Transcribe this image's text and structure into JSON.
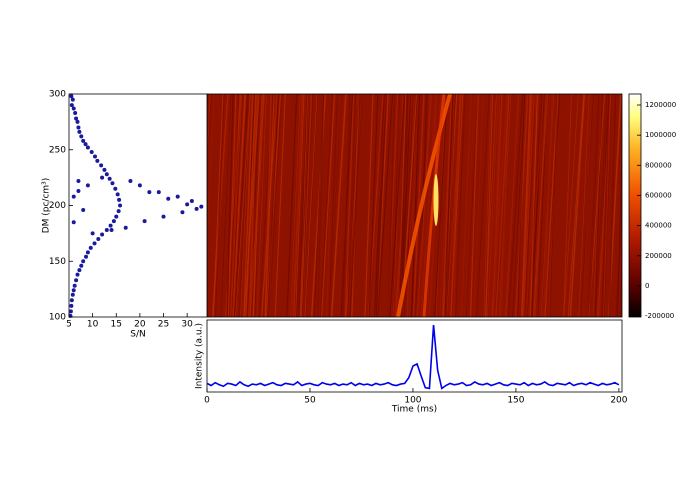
{
  "chart_data": [
    {
      "type": "scatter",
      "xlabel": "S/N",
      "ylabel": "DM (pc/cm³)",
      "color": "#1a1a9c",
      "xlim": [
        5,
        34.2
      ],
      "ylim": [
        100,
        300
      ],
      "xticks": [
        5,
        10,
        15,
        20,
        25,
        30
      ],
      "yticks": [
        100,
        150,
        200,
        250,
        300
      ],
      "x": [
        5.5,
        5.8,
        5.6,
        6,
        6.3,
        6.5,
        6.8,
        7,
        7.2,
        7.6,
        8,
        8.5,
        9,
        9.8,
        10.5,
        11,
        11.8,
        12.5,
        13,
        13.6,
        14.2,
        14.8,
        15.3,
        15.6,
        15.8,
        15.5,
        15,
        14.5,
        13.8,
        13,
        12,
        11.2,
        10.4,
        9.6,
        9,
        8.6,
        8,
        7.6,
        7.2,
        6.8,
        6.5,
        6.2,
        6,
        5.8,
        5.6,
        5.5,
        5.4,
        5.3,
        20,
        24,
        28,
        31,
        33,
        30,
        26,
        22,
        18,
        12,
        9,
        7,
        17,
        21,
        25,
        29,
        32,
        8,
        6,
        10,
        14,
        7,
        6
      ],
      "values": [
        298,
        295,
        290,
        287,
        283,
        278,
        275,
        270,
        266,
        262,
        258,
        255,
        252,
        248,
        244,
        240,
        236,
        232,
        228,
        224,
        220,
        215,
        210,
        205,
        200,
        195,
        190,
        186,
        182,
        178,
        174,
        170,
        166,
        162,
        158,
        154,
        150,
        146,
        142,
        138,
        133,
        128,
        124,
        120,
        115,
        110,
        105,
        101,
        218,
        212,
        208,
        204,
        199,
        201,
        206,
        212,
        222,
        225,
        218,
        213,
        180,
        186,
        190,
        194,
        197,
        196,
        185,
        175,
        178,
        222,
        208
      ]
    },
    {
      "type": "heatmap",
      "colorbar_lim": [
        -206000,
        1273000
      ],
      "colorbar_ticks": [
        -200000,
        0,
        200000,
        400000,
        600000,
        800000,
        1000000,
        1200000
      ]
    },
    {
      "type": "line",
      "xlabel": "Time (ms)",
      "ylabel": "Intensity (a.u.)",
      "color": "#0000ee",
      "xlim": [
        0,
        201.5
      ],
      "ylim": [
        0,
        1
      ],
      "xticks": [
        0,
        50,
        100,
        150,
        200
      ],
      "x": [
        0,
        2,
        4,
        6,
        8,
        10,
        12,
        14,
        16,
        18,
        20,
        22,
        24,
        26,
        28,
        30,
        32,
        34,
        36,
        38,
        40,
        42,
        44,
        46,
        48,
        50,
        52,
        54,
        56,
        58,
        60,
        62,
        64,
        66,
        68,
        70,
        72,
        74,
        76,
        78,
        80,
        82,
        84,
        86,
        88,
        90,
        92,
        94,
        96,
        98,
        100,
        102,
        104,
        106,
        108,
        110,
        112,
        114,
        116,
        118,
        120,
        122,
        124,
        126,
        128,
        130,
        132,
        134,
        136,
        138,
        140,
        142,
        144,
        146,
        148,
        150,
        152,
        154,
        156,
        158,
        160,
        162,
        164,
        166,
        168,
        170,
        172,
        174,
        176,
        178,
        180,
        182,
        184,
        186,
        188,
        190,
        192,
        194,
        196,
        198,
        200
      ],
      "values": [
        0.12,
        0.09,
        0.13,
        0.1,
        0.08,
        0.12,
        0.11,
        0.09,
        0.14,
        0.1,
        0.08,
        0.11,
        0.1,
        0.12,
        0.09,
        0.11,
        0.13,
        0.1,
        0.09,
        0.12,
        0.11,
        0.1,
        0.14,
        0.09,
        0.11,
        0.12,
        0.1,
        0.09,
        0.13,
        0.11,
        0.1,
        0.12,
        0.09,
        0.11,
        0.1,
        0.13,
        0.09,
        0.12,
        0.1,
        0.11,
        0.09,
        0.12,
        0.1,
        0.11,
        0.13,
        0.1,
        0.09,
        0.11,
        0.12,
        0.2,
        0.36,
        0.39,
        0.22,
        0.06,
        0.05,
        0.93,
        0.3,
        0.05,
        0.09,
        0.12,
        0.1,
        0.11,
        0.13,
        0.09,
        0.1,
        0.14,
        0.11,
        0.1,
        0.12,
        0.09,
        0.11,
        0.13,
        0.1,
        0.09,
        0.12,
        0.11,
        0.1,
        0.13,
        0.09,
        0.12,
        0.1,
        0.11,
        0.14,
        0.1,
        0.09,
        0.12,
        0.11,
        0.1,
        0.13,
        0.09,
        0.11,
        0.12,
        0.1,
        0.13,
        0.11,
        0.09,
        0.12,
        0.1,
        0.11,
        0.13,
        0.1
      ]
    }
  ]
}
